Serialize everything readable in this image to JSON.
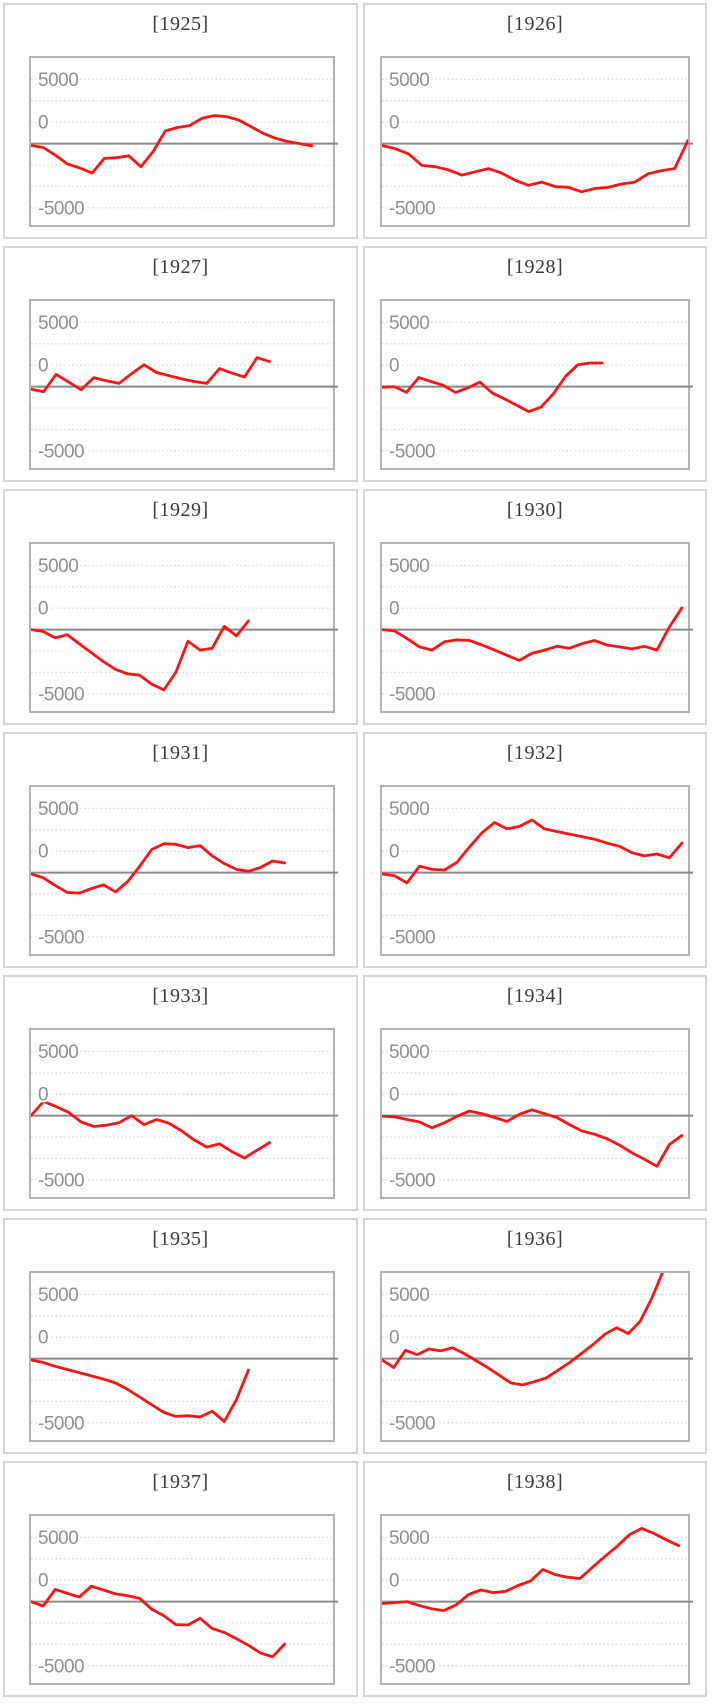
{
  "axis": {
    "tick_labels": [
      "5000",
      "0",
      "-5000"
    ],
    "tick_values": [
      5000,
      0,
      -5000
    ],
    "gridline_count": 7,
    "gridline_style": "dotted",
    "zero_line_style": "solid",
    "x_tick_labels": []
  },
  "colors": {
    "series": "#fb1414",
    "gridline": "#dadada",
    "zero_line": "#8a8a8a",
    "plot_border": "#b2b4b6",
    "card_border": "#d3d5d7",
    "tick_label": "#8e9093",
    "title": "#3a3a3a",
    "background": "#ffffff"
  },
  "chart_data": [
    {
      "type": "line",
      "title": "[1925]",
      "year": 1925,
      "ylim": [
        -6600,
        6600
      ],
      "x_end_frac": 0.93,
      "values": [
        -150,
        -300,
        -900,
        -1600,
        -1900,
        -2300,
        -1150,
        -1100,
        -950,
        -1800,
        -620,
        990,
        1250,
        1400,
        1970,
        2180,
        2100,
        1840,
        1330,
        800,
        420,
        160,
        0,
        -180
      ]
    },
    {
      "type": "line",
      "title": "[1926]",
      "year": 1926,
      "ylim": [
        -6600,
        6600
      ],
      "x_end_frac": 1.0,
      "values": [
        -150,
        -400,
        -800,
        -1700,
        -1800,
        -2050,
        -2450,
        -2200,
        -1950,
        -2300,
        -2850,
        -3250,
        -3000,
        -3350,
        -3400,
        -3750,
        -3500,
        -3400,
        -3150,
        -3000,
        -2350,
        -2100,
        -1950,
        250
      ]
    },
    {
      "type": "line",
      "title": "[1927]",
      "year": 1927,
      "ylim": [
        -6600,
        6600
      ],
      "x_end_frac": 0.79,
      "values": [
        -200,
        -400,
        950,
        350,
        -250,
        700,
        450,
        250,
        1000,
        1700,
        1100,
        850,
        600,
        400,
        250,
        1400,
        1050,
        750,
        2250,
        1950
      ]
    },
    {
      "type": "line",
      "title": "[1928]",
      "year": 1928,
      "ylim": [
        -6600,
        6600
      ],
      "x_end_frac": 0.72,
      "values": [
        -50,
        0,
        -450,
        700,
        400,
        100,
        -450,
        -100,
        350,
        -500,
        -950,
        -1450,
        -1950,
        -1600,
        -550,
        800,
        1700,
        1840,
        1840
      ]
    },
    {
      "type": "line",
      "title": "[1929]",
      "year": 1929,
      "ylim": [
        -6600,
        6600
      ],
      "x_end_frac": 0.72,
      "values": [
        0,
        -150,
        -650,
        -400,
        -1100,
        -1800,
        -2500,
        -3100,
        -3450,
        -3550,
        -4250,
        -4700,
        -3300,
        -900,
        -1600,
        -1450,
        250,
        -500,
        680
      ]
    },
    {
      "type": "line",
      "title": "[1930]",
      "year": 1930,
      "ylim": [
        -6600,
        6600
      ],
      "x_end_frac": 0.98,
      "values": [
        0,
        -100,
        -700,
        -1350,
        -1600,
        -950,
        -800,
        -850,
        -1200,
        -1600,
        -2000,
        -2400,
        -1850,
        -1600,
        -1300,
        -1450,
        -1100,
        -850,
        -1200,
        -1350,
        -1500,
        -1300,
        -1600,
        200,
        1700
      ]
    },
    {
      "type": "line",
      "title": "[1931]",
      "year": 1931,
      "ylim": [
        -6600,
        6600
      ],
      "x_end_frac": 0.84,
      "values": [
        -100,
        -400,
        -1000,
        -1550,
        -1600,
        -1250,
        -950,
        -1500,
        -700,
        500,
        1800,
        2250,
        2200,
        1950,
        2100,
        1300,
        700,
        250,
        100,
        400,
        900,
        750
      ]
    },
    {
      "type": "line",
      "title": "[1932]",
      "year": 1932,
      "ylim": [
        -6600,
        6600
      ],
      "x_end_frac": 0.98,
      "values": [
        -100,
        -250,
        -800,
        500,
        250,
        200,
        800,
        2000,
        3100,
        3900,
        3400,
        3600,
        4100,
        3400,
        3200,
        3000,
        2800,
        2600,
        2300,
        2050,
        1550,
        1300,
        1450,
        1150,
        2300
      ]
    },
    {
      "type": "line",
      "title": "[1933]",
      "year": 1933,
      "ylim": [
        -6600,
        6600
      ],
      "x_end_frac": 0.79,
      "values": [
        0,
        1100,
        700,
        250,
        -500,
        -850,
        -750,
        -550,
        0,
        -700,
        -300,
        -600,
        -1200,
        -1900,
        -2450,
        -2200,
        -2800,
        -3300,
        -2700,
        -2100
      ]
    },
    {
      "type": "line",
      "title": "[1934]",
      "year": 1934,
      "ylim": [
        -6600,
        6600
      ],
      "x_end_frac": 0.98,
      "values": [
        -50,
        -100,
        -300,
        -500,
        -950,
        -550,
        -50,
        350,
        150,
        -150,
        -450,
        100,
        450,
        150,
        -150,
        -700,
        -1200,
        -1450,
        -1800,
        -2300,
        -2900,
        -3400,
        -3950,
        -2250,
        -1550
      ]
    },
    {
      "type": "line",
      "title": "[1935]",
      "year": 1935,
      "ylim": [
        -6600,
        6600
      ],
      "x_end_frac": 0.72,
      "values": [
        -100,
        -300,
        -600,
        -850,
        -1100,
        -1350,
        -1600,
        -1900,
        -2400,
        -3000,
        -3600,
        -4200,
        -4500,
        -4450,
        -4550,
        -4100,
        -4900,
        -3200,
        -900
      ]
    },
    {
      "type": "line",
      "title": "[1936]",
      "year": 1936,
      "ylim": [
        -6600,
        6600
      ],
      "x_end_frac": 0.92,
      "values": [
        -100,
        -700,
        650,
        300,
        750,
        600,
        850,
        400,
        -150,
        -700,
        -1300,
        -1900,
        -2050,
        -1800,
        -1500,
        -900,
        -300,
        400,
        1100,
        1900,
        2400,
        1950,
        2900,
        4700,
        6900
      ]
    },
    {
      "type": "line",
      "title": "[1937]",
      "year": 1937,
      "ylim": [
        -6600,
        6600
      ],
      "x_end_frac": 0.84,
      "values": [
        0,
        -350,
        950,
        650,
        350,
        1200,
        900,
        600,
        450,
        250,
        -600,
        -1100,
        -1800,
        -1820,
        -1300,
        -2100,
        -2400,
        -2900,
        -3400,
        -4000,
        -4300,
        -3300
      ]
    },
    {
      "type": "line",
      "title": "[1938]",
      "year": 1938,
      "ylim": [
        -6600,
        6600
      ],
      "x_end_frac": 0.97,
      "values": [
        -150,
        -80,
        0,
        -300,
        -550,
        -700,
        -250,
        550,
        900,
        700,
        800,
        1250,
        1600,
        2500,
        2100,
        1900,
        1800,
        2650,
        3500,
        4300,
        5200,
        5700,
        5300,
        4800,
        4350
      ]
    }
  ]
}
